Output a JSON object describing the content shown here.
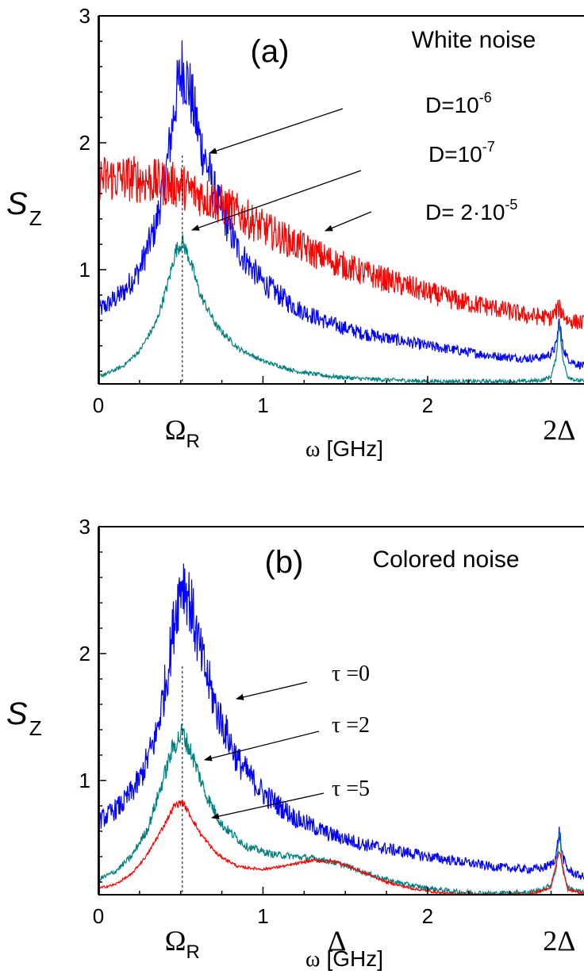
{
  "chart_data": [
    {
      "type": "line",
      "panel_label": "(a)",
      "annotation_title": "White noise",
      "xlabel_symbol": "ω",
      "xlabel_unit": "[GHz]",
      "ylabel_main": "S",
      "ylabel_sub": "Z",
      "xlim": [
        0,
        2.95
      ],
      "ylim": [
        0.1,
        3.0
      ],
      "x_ticks": [
        {
          "value": 0,
          "label": "0"
        },
        {
          "value": 1,
          "label": "1"
        },
        {
          "value": 2,
          "label": "2"
        }
      ],
      "x_special_ticks": [
        {
          "value": 0.51,
          "main": "Ω",
          "sub": "R"
        },
        {
          "value": 2.8,
          "main": "2Δ",
          "sub": ""
        }
      ],
      "y_ticks": [
        {
          "value": 1,
          "label": "1"
        },
        {
          "value": 2,
          "label": "2"
        },
        {
          "value": 3,
          "label": "3"
        }
      ],
      "omega_r": 0.51,
      "two_delta": 2.8,
      "series": [
        {
          "name": "D=10",
          "exponent": "-6",
          "color": "#0000ff",
          "noise": 0.2,
          "x": [
            0,
            0.05,
            0.15,
            0.25,
            0.35,
            0.42,
            0.47,
            0.51,
            0.55,
            0.62,
            0.72,
            0.85,
            1.0,
            1.2,
            1.4,
            1.6,
            1.8,
            2.0,
            2.2,
            2.4,
            2.6,
            2.7,
            2.75,
            2.78,
            2.8,
            2.82,
            2.85,
            2.9,
            2.95
          ],
          "y": [
            0.68,
            0.72,
            0.82,
            1.0,
            1.35,
            1.85,
            2.35,
            2.6,
            2.45,
            2.0,
            1.55,
            1.15,
            0.9,
            0.7,
            0.58,
            0.5,
            0.45,
            0.4,
            0.36,
            0.32,
            0.3,
            0.31,
            0.34,
            0.4,
            0.6,
            0.4,
            0.3,
            0.26,
            0.24
          ]
        },
        {
          "name": "D=10",
          "exponent": "-7",
          "color": "#008080",
          "noise": 0.1,
          "x": [
            0,
            0.05,
            0.15,
            0.25,
            0.35,
            0.42,
            0.47,
            0.51,
            0.55,
            0.62,
            0.72,
            0.85,
            1.0,
            1.2,
            1.4,
            1.6,
            1.8,
            2.0,
            2.2,
            2.4,
            2.6,
            2.7,
            2.75,
            2.78,
            2.8,
            2.82,
            2.85,
            2.9,
            2.95
          ],
          "y": [
            0.16,
            0.18,
            0.24,
            0.36,
            0.58,
            0.88,
            1.15,
            1.22,
            1.1,
            0.8,
            0.55,
            0.38,
            0.28,
            0.2,
            0.16,
            0.14,
            0.13,
            0.12,
            0.12,
            0.12,
            0.12,
            0.13,
            0.16,
            0.3,
            0.6,
            0.3,
            0.16,
            0.13,
            0.12
          ]
        },
        {
          "name": "D= 2·10",
          "exponent": "-5",
          "color": "#ff0000",
          "noise": 0.2,
          "x": [
            0,
            0.2,
            0.4,
            0.5,
            0.6,
            0.8,
            1.0,
            1.2,
            1.4,
            1.6,
            1.8,
            2.0,
            2.2,
            2.4,
            2.6,
            2.75,
            2.8,
            2.85,
            2.95
          ],
          "y": [
            1.72,
            1.72,
            1.68,
            1.66,
            1.6,
            1.48,
            1.33,
            1.2,
            1.08,
            0.98,
            0.9,
            0.82,
            0.75,
            0.7,
            0.64,
            0.62,
            0.7,
            0.6,
            0.58
          ]
        }
      ]
    },
    {
      "type": "line",
      "panel_label": "(b)",
      "annotation_title": "Colored noise",
      "xlabel_symbol": "ω",
      "xlabel_unit": "[GHz]",
      "ylabel_main": "S",
      "ylabel_sub": "Z",
      "xlim": [
        0,
        2.95
      ],
      "ylim": [
        0.1,
        3.0
      ],
      "x_ticks": [
        {
          "value": 0,
          "label": "0"
        },
        {
          "value": 1,
          "label": "1"
        },
        {
          "value": 2,
          "label": "2"
        }
      ],
      "x_special_ticks": [
        {
          "value": 0.51,
          "main": "Ω",
          "sub": "R"
        },
        {
          "value": 1.45,
          "main": "Δ",
          "sub": ""
        },
        {
          "value": 2.8,
          "main": "2Δ",
          "sub": ""
        }
      ],
      "y_ticks": [
        {
          "value": 1,
          "label": "1"
        },
        {
          "value": 2,
          "label": "2"
        },
        {
          "value": 3,
          "label": "3"
        }
      ],
      "omega_r": 0.51,
      "two_delta": 2.8,
      "series": [
        {
          "name": "τ =0",
          "color": "#0000ff",
          "noise": 0.2,
          "x": [
            0,
            0.05,
            0.15,
            0.25,
            0.35,
            0.42,
            0.47,
            0.51,
            0.55,
            0.62,
            0.72,
            0.85,
            1.0,
            1.2,
            1.4,
            1.6,
            1.8,
            2.0,
            2.2,
            2.4,
            2.6,
            2.7,
            2.75,
            2.78,
            2.8,
            2.82,
            2.85,
            2.9,
            2.95
          ],
          "y": [
            0.68,
            0.72,
            0.82,
            1.0,
            1.35,
            1.85,
            2.35,
            2.6,
            2.45,
            2.0,
            1.55,
            1.15,
            0.9,
            0.7,
            0.58,
            0.5,
            0.45,
            0.4,
            0.36,
            0.32,
            0.3,
            0.31,
            0.34,
            0.4,
            0.6,
            0.4,
            0.3,
            0.26,
            0.24
          ]
        },
        {
          "name": "τ =2",
          "color": "#008080",
          "noise": 0.12,
          "x": [
            0,
            0.1,
            0.2,
            0.3,
            0.38,
            0.45,
            0.51,
            0.57,
            0.65,
            0.75,
            0.9,
            1.05,
            1.2,
            1.35,
            1.5,
            1.65,
            1.8,
            2.0,
            2.2,
            2.4,
            2.6,
            2.7,
            2.75,
            2.78,
            2.8,
            2.82,
            2.85,
            2.9,
            2.95
          ],
          "y": [
            0.22,
            0.28,
            0.4,
            0.62,
            0.95,
            1.25,
            1.38,
            1.2,
            0.9,
            0.65,
            0.48,
            0.42,
            0.4,
            0.38,
            0.33,
            0.26,
            0.2,
            0.15,
            0.12,
            0.11,
            0.12,
            0.14,
            0.18,
            0.3,
            0.6,
            0.3,
            0.16,
            0.13,
            0.12
          ]
        },
        {
          "name": "τ =5",
          "color": "#ff0000",
          "noise": 0.06,
          "x": [
            0,
            0.1,
            0.2,
            0.3,
            0.4,
            0.46,
            0.51,
            0.56,
            0.62,
            0.72,
            0.85,
            1.0,
            1.15,
            1.3,
            1.45,
            1.6,
            1.75,
            1.9,
            2.1,
            2.3,
            2.5,
            2.65,
            2.75,
            2.8,
            2.85,
            2.95
          ],
          "y": [
            0.15,
            0.18,
            0.26,
            0.42,
            0.65,
            0.8,
            0.83,
            0.72,
            0.58,
            0.42,
            0.32,
            0.3,
            0.33,
            0.37,
            0.36,
            0.28,
            0.2,
            0.15,
            0.11,
            0.1,
            0.1,
            0.11,
            0.16,
            0.45,
            0.14,
            0.11
          ]
        }
      ]
    }
  ]
}
